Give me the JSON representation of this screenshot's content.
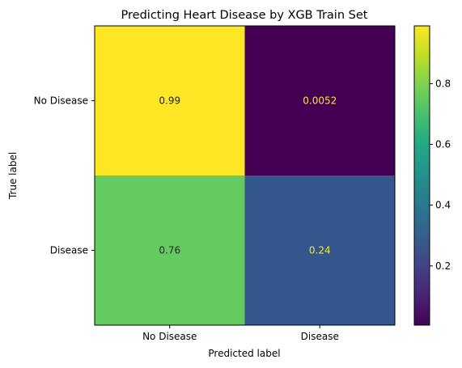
{
  "chart_data": {
    "type": "heatmap",
    "title": "Predicting Heart Disease by XGB Train Set",
    "xlabel": "Predicted label",
    "ylabel": "True label",
    "x_categories": [
      "No Disease",
      "Disease"
    ],
    "y_categories": [
      "No Disease",
      "Disease"
    ],
    "values": [
      [
        0.99,
        0.0052
      ],
      [
        0.76,
        0.24
      ]
    ],
    "cell_labels": [
      [
        "0.99",
        "0.0052"
      ],
      [
        "0.76",
        "0.24"
      ]
    ],
    "cell_colors": [
      [
        "#fde725",
        "#440154"
      ],
      [
        "#63cb5f",
        "#31578c"
      ]
    ],
    "cell_text_colors": [
      [
        "#262626",
        "#fde725"
      ],
      [
        "#262626",
        "#fde725"
      ]
    ],
    "colorbar": {
      "vmin": 0.0052,
      "vmax": 0.99,
      "ticks": [
        0.2,
        0.4,
        0.6,
        0.8
      ],
      "tick_labels": [
        "0.2",
        "0.4",
        "0.6",
        "0.8"
      ],
      "colormap": "viridis"
    },
    "grid": false
  }
}
